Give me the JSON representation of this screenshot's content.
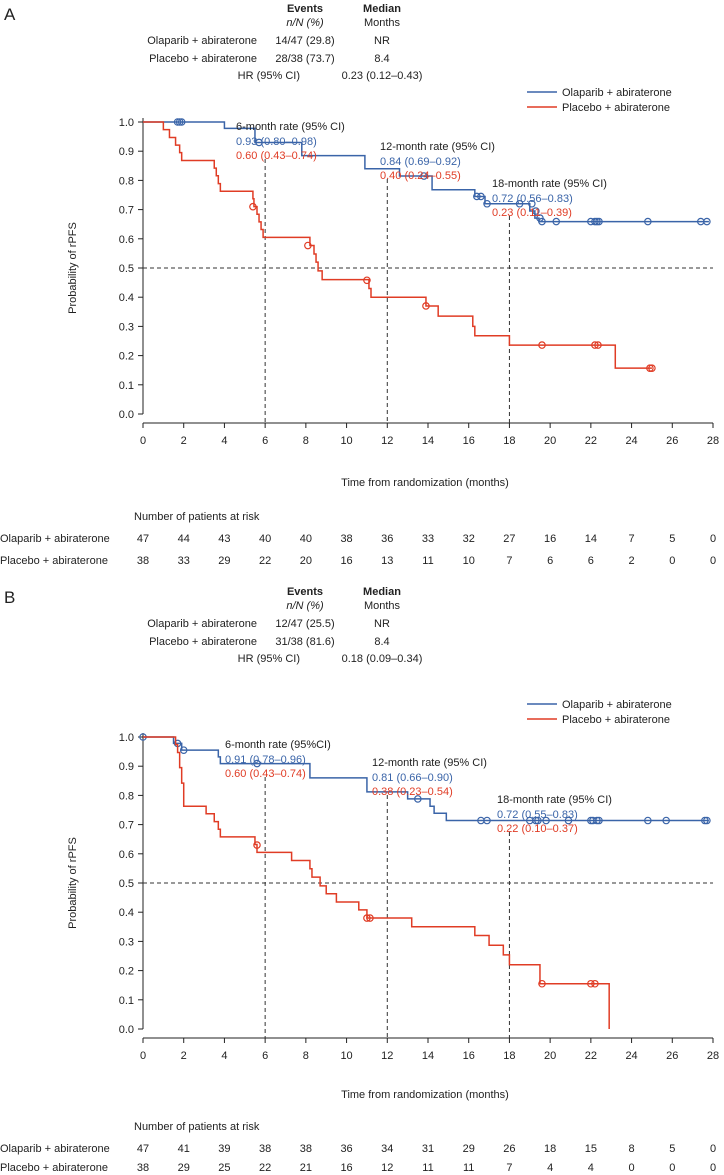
{
  "panels": [
    {
      "label": "A",
      "summary": {
        "events_header": "Events",
        "events_sub": "n/N (%)",
        "median_header": "Median",
        "median_sub": "Months",
        "rows": [
          {
            "name": "Olaparib + abiraterone",
            "events": "14/47 (29.8)",
            "median": "NR"
          },
          {
            "name": "Placebo + abiraterone",
            "events": "28/38 (73.7)",
            "median": "8.4"
          }
        ],
        "hr_label": "HR (95% CI)",
        "hr_value": "0.23 (0.12–0.43)"
      },
      "rates": [
        {
          "title": "6-month rate (95% CI)",
          "olaparib": "0.93 (0.80–0.98)",
          "placebo": "0.60 (0.43–0.74)"
        },
        {
          "title": "12-month rate (95% CI)",
          "olaparib": "0.84 (0.69–0.92)",
          "placebo": "0.40 (0.24–0.55)"
        },
        {
          "title": "18-month rate (95% CI)",
          "olaparib": "0.72 (0.56–0.83)",
          "placebo": "0.23 (0.11–0.39)"
        }
      ],
      "at_risk": {
        "title": "Number of patients at risk",
        "rows": [
          {
            "name": "Olaparib + abiraterone",
            "values": [
              47,
              44,
              43,
              40,
              40,
              38,
              36,
              33,
              32,
              27,
              16,
              14,
              7,
              5,
              0
            ]
          },
          {
            "name": "Placebo + abiraterone",
            "values": [
              38,
              33,
              29,
              22,
              20,
              16,
              13,
              11,
              10,
              7,
              6,
              6,
              2,
              0,
              0
            ]
          }
        ]
      }
    },
    {
      "label": "B",
      "summary": {
        "events_header": "Events",
        "events_sub": "n/N (%)",
        "median_header": "Median",
        "median_sub": "Months",
        "rows": [
          {
            "name": "Olaparib + abiraterone",
            "events": "12/47 (25.5)",
            "median": "NR"
          },
          {
            "name": "Placebo + abiraterone",
            "events": "31/38 (81.6)",
            "median": "8.4"
          }
        ],
        "hr_label": "HR (95% CI)",
        "hr_value": "0.18 (0.09–0.34)"
      },
      "rates": [
        {
          "title": "6-month rate (95%CI)",
          "olaparib": "0.91 (0.78–0.96)",
          "placebo": "0.60 (0.43–0.74)"
        },
        {
          "title": "12-month rate (95% CI)",
          "olaparib": "0.81 (0.66–0.90)",
          "placebo": "0.38 (0.23–0.54)"
        },
        {
          "title": "18-month rate (95% CI)",
          "olaparib": "0.72 (0.55–0.83)",
          "placebo": "0.22 (0.10–0.37)"
        }
      ],
      "at_risk": {
        "title": "Number of patients at risk",
        "rows": [
          {
            "name": "Olaparib + abiraterone",
            "values": [
              47,
              41,
              39,
              38,
              38,
              36,
              34,
              31,
              29,
              26,
              18,
              15,
              8,
              5,
              0
            ]
          },
          {
            "name": "Placebo + abiraterone",
            "values": [
              38,
              29,
              25,
              22,
              21,
              16,
              12,
              11,
              11,
              7,
              4,
              4,
              0,
              0,
              0
            ]
          }
        ]
      }
    }
  ],
  "colors": {
    "olaparib": "#3a64a8",
    "placebo": "#e03c25",
    "text": "#222222"
  },
  "chart_data": [
    {
      "type": "line",
      "panel": "A",
      "xlabel": "Time from randomization (months)",
      "ylabel": "Probability of rPFS",
      "xlim": [
        0,
        28
      ],
      "ylim": [
        0,
        1.0
      ],
      "xticks": [
        0,
        2,
        4,
        6,
        8,
        10,
        12,
        14,
        16,
        18,
        20,
        22,
        24,
        26,
        28
      ],
      "yticks": [
        0.0,
        0.1,
        0.2,
        0.3,
        0.4,
        0.5,
        0.6,
        0.7,
        0.8,
        0.9,
        1.0
      ],
      "yticklabels": [
        "0.0",
        "0.1",
        "0.2",
        "0.3",
        "0.4",
        "0.5",
        "0.6",
        "0.7",
        "0.8",
        "0.9",
        "1.0"
      ],
      "reference_y": 0.5,
      "reference_x": [
        6,
        12,
        18
      ],
      "legend": "top-right",
      "series": [
        {
          "name": "Olaparib + abiraterone",
          "color": "#3a64a8",
          "steps": [
            [
              0,
              1.0
            ],
            [
              4.0,
              0.978
            ],
            [
              5.5,
              0.93
            ],
            [
              7.8,
              0.885
            ],
            [
              10.9,
              0.84
            ],
            [
              12.6,
              0.815
            ],
            [
              14.2,
              0.768
            ],
            [
              16.3,
              0.745
            ],
            [
              16.8,
              0.72
            ],
            [
              19.0,
              0.695
            ],
            [
              19.25,
              0.671
            ],
            [
              19.45,
              0.659
            ]
          ],
          "end": 27.8,
          "censored": [
            [
              1.7,
              1.0
            ],
            [
              1.8,
              1.0
            ],
            [
              1.9,
              1.0
            ],
            [
              5.7,
              0.93
            ],
            [
              13.8,
              0.815
            ],
            [
              16.4,
              0.745
            ],
            [
              16.6,
              0.745
            ],
            [
              16.9,
              0.72
            ],
            [
              18.5,
              0.72
            ],
            [
              19.1,
              0.72
            ],
            [
              19.3,
              0.695
            ],
            [
              19.5,
              0.671
            ],
            [
              19.6,
              0.659
            ],
            [
              20.3,
              0.659
            ],
            [
              22.0,
              0.659
            ],
            [
              22.2,
              0.659
            ],
            [
              22.3,
              0.659
            ],
            [
              22.4,
              0.659
            ],
            [
              24.8,
              0.659
            ],
            [
              27.4,
              0.659
            ],
            [
              27.7,
              0.659
            ]
          ]
        },
        {
          "name": "Placebo + abiraterone",
          "color": "#e03c25",
          "steps": [
            [
              0,
              1.0
            ],
            [
              1.0,
              0.974
            ],
            [
              1.3,
              0.947
            ],
            [
              1.6,
              0.921
            ],
            [
              1.8,
              0.895
            ],
            [
              1.9,
              0.868
            ],
            [
              3.5,
              0.842
            ],
            [
              3.6,
              0.816
            ],
            [
              3.7,
              0.789
            ],
            [
              3.8,
              0.763
            ],
            [
              5.4,
              0.737
            ],
            [
              5.45,
              0.71
            ],
            [
              5.6,
              0.684
            ],
            [
              5.7,
              0.658
            ],
            [
              5.8,
              0.632
            ],
            [
              5.9,
              0.605
            ],
            [
              8.2,
              0.577
            ],
            [
              8.4,
              0.548
            ],
            [
              8.5,
              0.52
            ],
            [
              8.6,
              0.49
            ],
            [
              8.8,
              0.46
            ],
            [
              11.1,
              0.43
            ],
            [
              11.2,
              0.4
            ],
            [
              13.9,
              0.37
            ],
            [
              14.5,
              0.335
            ],
            [
              16.2,
              0.3
            ],
            [
              16.3,
              0.268
            ],
            [
              18.0,
              0.236
            ],
            [
              23.2,
              0.157
            ]
          ],
          "end": 25.0,
          "censored": [
            [
              5.4,
              0.71
            ],
            [
              8.1,
              0.577
            ],
            [
              11.0,
              0.458
            ],
            [
              13.9,
              0.37
            ],
            [
              19.6,
              0.236
            ],
            [
              22.2,
              0.236
            ],
            [
              22.35,
              0.236
            ],
            [
              24.9,
              0.157
            ],
            [
              25.0,
              0.157
            ]
          ]
        }
      ]
    },
    {
      "type": "line",
      "panel": "B",
      "xlabel": "Time from randomization (months)",
      "ylabel": "Probability of rPFS",
      "xlim": [
        0,
        28
      ],
      "ylim": [
        0,
        1.0
      ],
      "xticks": [
        0,
        2,
        4,
        6,
        8,
        10,
        12,
        14,
        16,
        18,
        20,
        22,
        24,
        26,
        28
      ],
      "yticks": [
        0.0,
        0.1,
        0.2,
        0.3,
        0.4,
        0.5,
        0.6,
        0.7,
        0.8,
        0.9,
        1.0
      ],
      "yticklabels": [
        "0.0",
        "0.1",
        "0.2",
        "0.3",
        "0.4",
        "0.5",
        "0.6",
        "0.7",
        "0.8",
        "0.9",
        "1.0"
      ],
      "reference_y": 0.5,
      "reference_x": [
        6,
        12,
        18
      ],
      "legend": "top-right",
      "series": [
        {
          "name": "Olaparib + abiraterone",
          "color": "#3a64a8",
          "steps": [
            [
              0,
              1.0
            ],
            [
              1.5,
              0.978
            ],
            [
              1.9,
              0.955
            ],
            [
              3.7,
              0.932
            ],
            [
              3.8,
              0.909
            ],
            [
              8.2,
              0.86
            ],
            [
              11.0,
              0.812
            ],
            [
              13.0,
              0.788
            ],
            [
              14.1,
              0.763
            ],
            [
              14.3,
              0.739
            ],
            [
              14.9,
              0.714
            ]
          ],
          "end": 27.8,
          "censored": [
            [
              0,
              1.0
            ],
            [
              1.7,
              0.978
            ],
            [
              2.0,
              0.955
            ],
            [
              5.6,
              0.909
            ],
            [
              13.5,
              0.788
            ],
            [
              16.6,
              0.714
            ],
            [
              16.9,
              0.714
            ],
            [
              19.0,
              0.714
            ],
            [
              19.3,
              0.714
            ],
            [
              19.4,
              0.714
            ],
            [
              19.8,
              0.714
            ],
            [
              20.9,
              0.714
            ],
            [
              22.0,
              0.714
            ],
            [
              22.1,
              0.714
            ],
            [
              22.3,
              0.714
            ],
            [
              22.4,
              0.714
            ],
            [
              24.8,
              0.714
            ],
            [
              25.7,
              0.714
            ],
            [
              27.6,
              0.714
            ],
            [
              27.7,
              0.714
            ]
          ]
        },
        {
          "name": "Placebo + abiraterone",
          "color": "#e03c25",
          "steps": [
            [
              0,
              1.0
            ],
            [
              1.6,
              0.974
            ],
            [
              1.7,
              0.947
            ],
            [
              1.8,
              0.895
            ],
            [
              1.9,
              0.842
            ],
            [
              2.0,
              0.763
            ],
            [
              3.1,
              0.737
            ],
            [
              3.5,
              0.71
            ],
            [
              3.7,
              0.684
            ],
            [
              3.8,
              0.658
            ],
            [
              5.5,
              0.632
            ],
            [
              5.6,
              0.605
            ],
            [
              7.3,
              0.577
            ],
            [
              8.2,
              0.549
            ],
            [
              8.3,
              0.52
            ],
            [
              8.7,
              0.49
            ],
            [
              9.0,
              0.463
            ],
            [
              9.5,
              0.435
            ],
            [
              10.6,
              0.408
            ],
            [
              11.0,
              0.38
            ],
            [
              13.2,
              0.35
            ],
            [
              16.3,
              0.32
            ],
            [
              17.0,
              0.287
            ],
            [
              17.7,
              0.254
            ],
            [
              18.0,
              0.22
            ],
            [
              19.5,
              0.155
            ]
          ],
          "end": 22.9,
          "drop_to": 0.0,
          "censored": [
            [
              5.6,
              0.63
            ],
            [
              11.0,
              0.38
            ],
            [
              11.15,
              0.38
            ],
            [
              19.6,
              0.155
            ],
            [
              22.0,
              0.155
            ],
            [
              22.2,
              0.155
            ]
          ]
        }
      ]
    }
  ]
}
